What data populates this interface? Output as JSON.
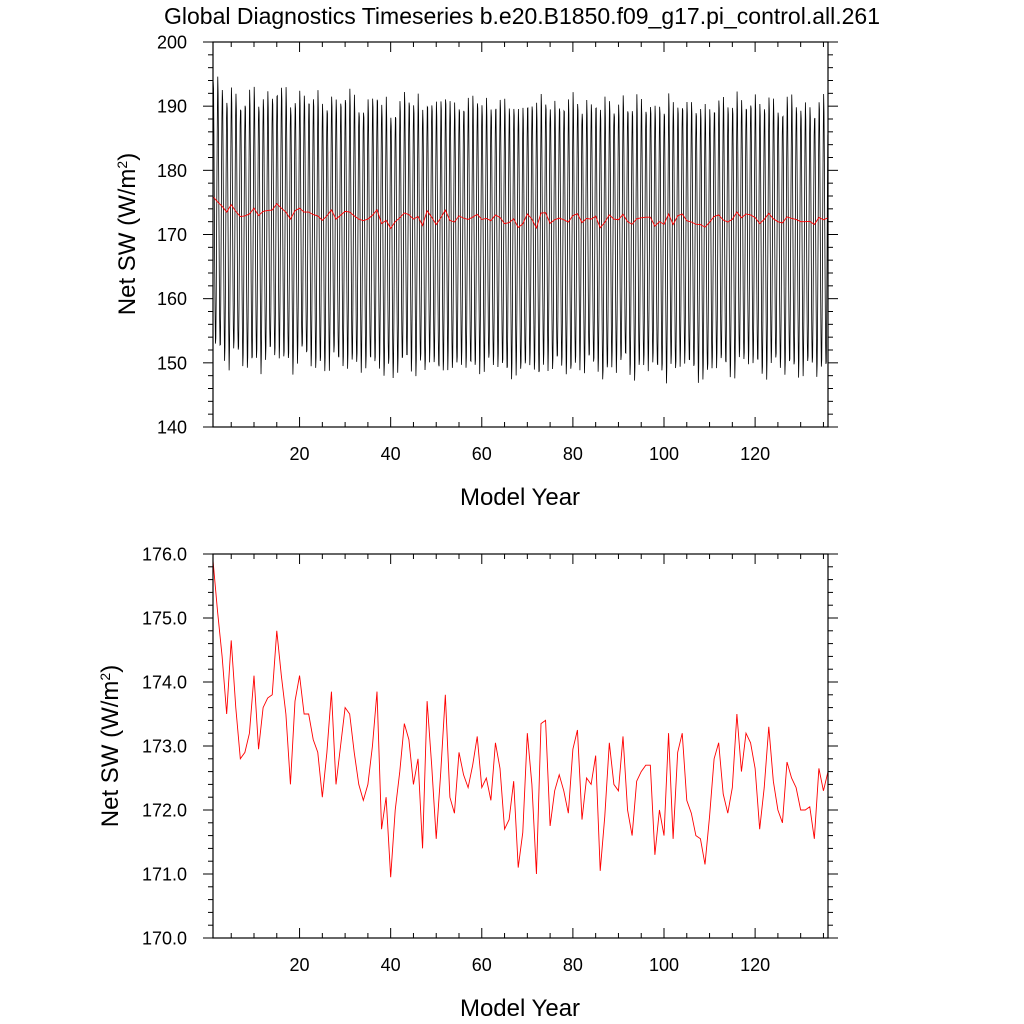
{
  "chart_data": [
    {
      "type": "line",
      "title": "Global Diagnostics Timeseries b.e20.B1850.f09_g17.pi_control.all.261",
      "xlabel": "Model Year",
      "ylabel": "Net SW (W/m",
      "ylabel_sup": "2",
      "ylabel_close": ")",
      "xlim": [
        1,
        136
      ],
      "ylim": [
        140,
        200
      ],
      "xticks": [
        20,
        40,
        60,
        80,
        100,
        120
      ],
      "yticks": [
        140,
        150,
        160,
        170,
        180,
        190,
        200
      ],
      "ytick_labels": [
        "140",
        "150",
        "160",
        "170",
        "180",
        "190",
        "200"
      ],
      "series": [
        {
          "color": "#000000",
          "kind": "monthly",
          "note_values": "monthly cycle, approx 147-192 W/m2",
          "monthly_annual_cycle": [
            190.0,
            188.5,
            181.0,
            171.0,
            161.0,
            153.5,
            149.0,
            150.5,
            157.0,
            166.5,
            177.0,
            185.5
          ]
        },
        {
          "color": "#ff0000",
          "kind": "annual",
          "ref": "annual_mean"
        }
      ]
    },
    {
      "type": "line",
      "title": "",
      "xlabel": "Model Year",
      "ylabel": "Net SW (W/m",
      "ylabel_sup": "2",
      "ylabel_close": ")",
      "xlim": [
        1,
        136
      ],
      "ylim": [
        170,
        176
      ],
      "xticks": [
        20,
        40,
        60,
        80,
        100,
        120
      ],
      "yticks": [
        170,
        171,
        172,
        173,
        174,
        175,
        176
      ],
      "ytick_labels": [
        "170.0",
        "171.0",
        "172.0",
        "173.0",
        "174.0",
        "175.0",
        "176.0"
      ],
      "series": [
        {
          "color": "#ff0000",
          "kind": "annual",
          "ref": "annual_mean"
        }
      ]
    }
  ],
  "annual_mean": {
    "x_start": 1,
    "values": [
      175.9,
      175.1,
      174.4,
      173.5,
      174.65,
      173.6,
      172.8,
      172.9,
      173.2,
      174.1,
      172.95,
      173.6,
      173.75,
      173.8,
      174.8,
      174.1,
      173.5,
      172.4,
      173.7,
      174.1,
      173.5,
      173.5,
      173.1,
      172.9,
      172.2,
      172.9,
      173.85,
      172.4,
      173.0,
      173.6,
      173.5,
      172.9,
      172.4,
      172.15,
      172.4,
      173.0,
      173.85,
      171.7,
      172.2,
      170.95,
      172.0,
      172.6,
      173.35,
      173.1,
      172.4,
      172.8,
      171.4,
      173.7,
      172.7,
      171.55,
      172.6,
      173.8,
      172.2,
      171.95,
      172.9,
      172.55,
      172.35,
      172.7,
      173.15,
      172.35,
      172.5,
      172.15,
      173.05,
      172.65,
      171.7,
      171.85,
      172.45,
      171.1,
      171.65,
      173.2,
      172.4,
      171.0,
      173.35,
      173.4,
      171.75,
      172.3,
      172.55,
      172.3,
      171.95,
      172.95,
      173.25,
      171.85,
      172.5,
      172.4,
      172.85,
      171.05,
      171.9,
      173.05,
      172.4,
      172.3,
      173.15,
      172.0,
      171.6,
      172.45,
      172.6,
      172.7,
      172.7,
      171.3,
      172.0,
      171.6,
      173.2,
      171.55,
      172.9,
      173.2,
      172.15,
      171.95,
      171.6,
      171.55,
      171.15,
      171.9,
      172.8,
      173.05,
      172.25,
      171.95,
      172.35,
      173.5,
      172.6,
      173.2,
      173.05,
      172.65,
      171.7,
      172.35,
      173.3,
      172.45,
      172.0,
      171.8,
      172.75,
      172.5,
      172.35,
      172.0,
      172.0,
      172.05,
      171.55,
      172.65,
      172.3,
      172.6
    ]
  }
}
